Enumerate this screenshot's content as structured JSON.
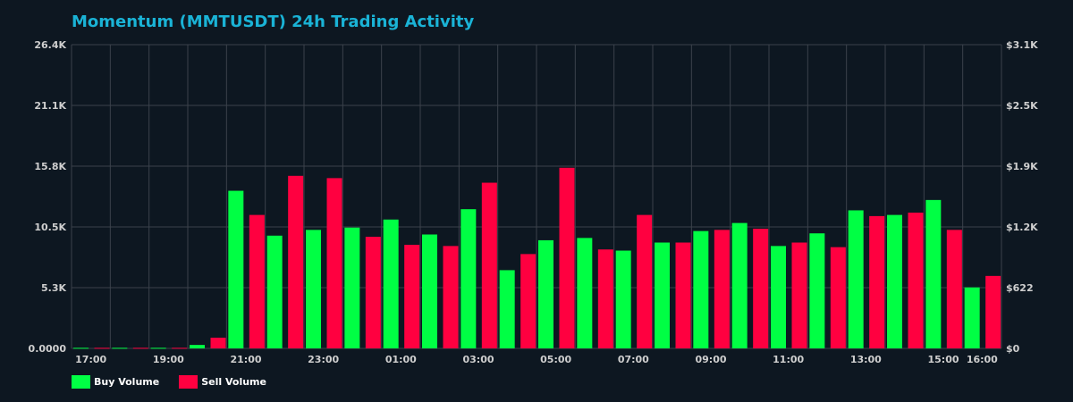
{
  "chart_data": {
    "type": "bar",
    "title": "Momentum (MMTUSDT) 24h Trading Activity",
    "categories": [
      "17:00",
      "18:00",
      "19:00",
      "20:00",
      "21:00",
      "22:00",
      "23:00",
      "00:00",
      "01:00",
      "02:00",
      "03:00",
      "04:00",
      "05:00",
      "06:00",
      "07:00",
      "08:00",
      "09:00",
      "10:00",
      "11:00",
      "12:00",
      "13:00",
      "14:00",
      "15:00",
      "16:00"
    ],
    "x_tick_labels": [
      "17:00",
      "19:00",
      "21:00",
      "23:00",
      "01:00",
      "03:00",
      "05:00",
      "07:00",
      "09:00",
      "11:00",
      "13:00",
      "15:00",
      "16:00"
    ],
    "x_tick_indices": [
      0,
      2,
      4,
      6,
      8,
      10,
      12,
      14,
      16,
      18,
      20,
      22,
      23
    ],
    "ylim": [
      0,
      26.4
    ],
    "y_unit": "K",
    "y_tick_labels": [
      "0.0000",
      "5.3K",
      "10.5K",
      "15.8K",
      "21.1K",
      "26.4K"
    ],
    "y2_tick_labels": [
      "$0",
      "$622",
      "$1.2K",
      "$1.9K",
      "$2.5K",
      "$3.1K"
    ],
    "grid": true,
    "legend_position": "bottom-left",
    "series": [
      {
        "name": "Buy Volume",
        "color": "#00ff44",
        "values": [
          0.05,
          0.05,
          0.05,
          0.3,
          13.7,
          9.8,
          10.3,
          10.5,
          11.2,
          9.9,
          12.1,
          6.8,
          9.4,
          9.6,
          8.5,
          9.2,
          10.2,
          10.9,
          8.9,
          10.0,
          12.0,
          11.6,
          12.9,
          5.3
        ]
      },
      {
        "name": "Sell Volume",
        "color": "#ff0040",
        "values": [
          0.05,
          0.05,
          0.05,
          0.93,
          11.6,
          15.0,
          14.8,
          9.7,
          9.0,
          8.9,
          14.4,
          8.2,
          15.7,
          8.6,
          11.6,
          9.2,
          10.3,
          10.4,
          9.2,
          8.8,
          11.5,
          11.8,
          10.3,
          6.3
        ]
      }
    ]
  }
}
